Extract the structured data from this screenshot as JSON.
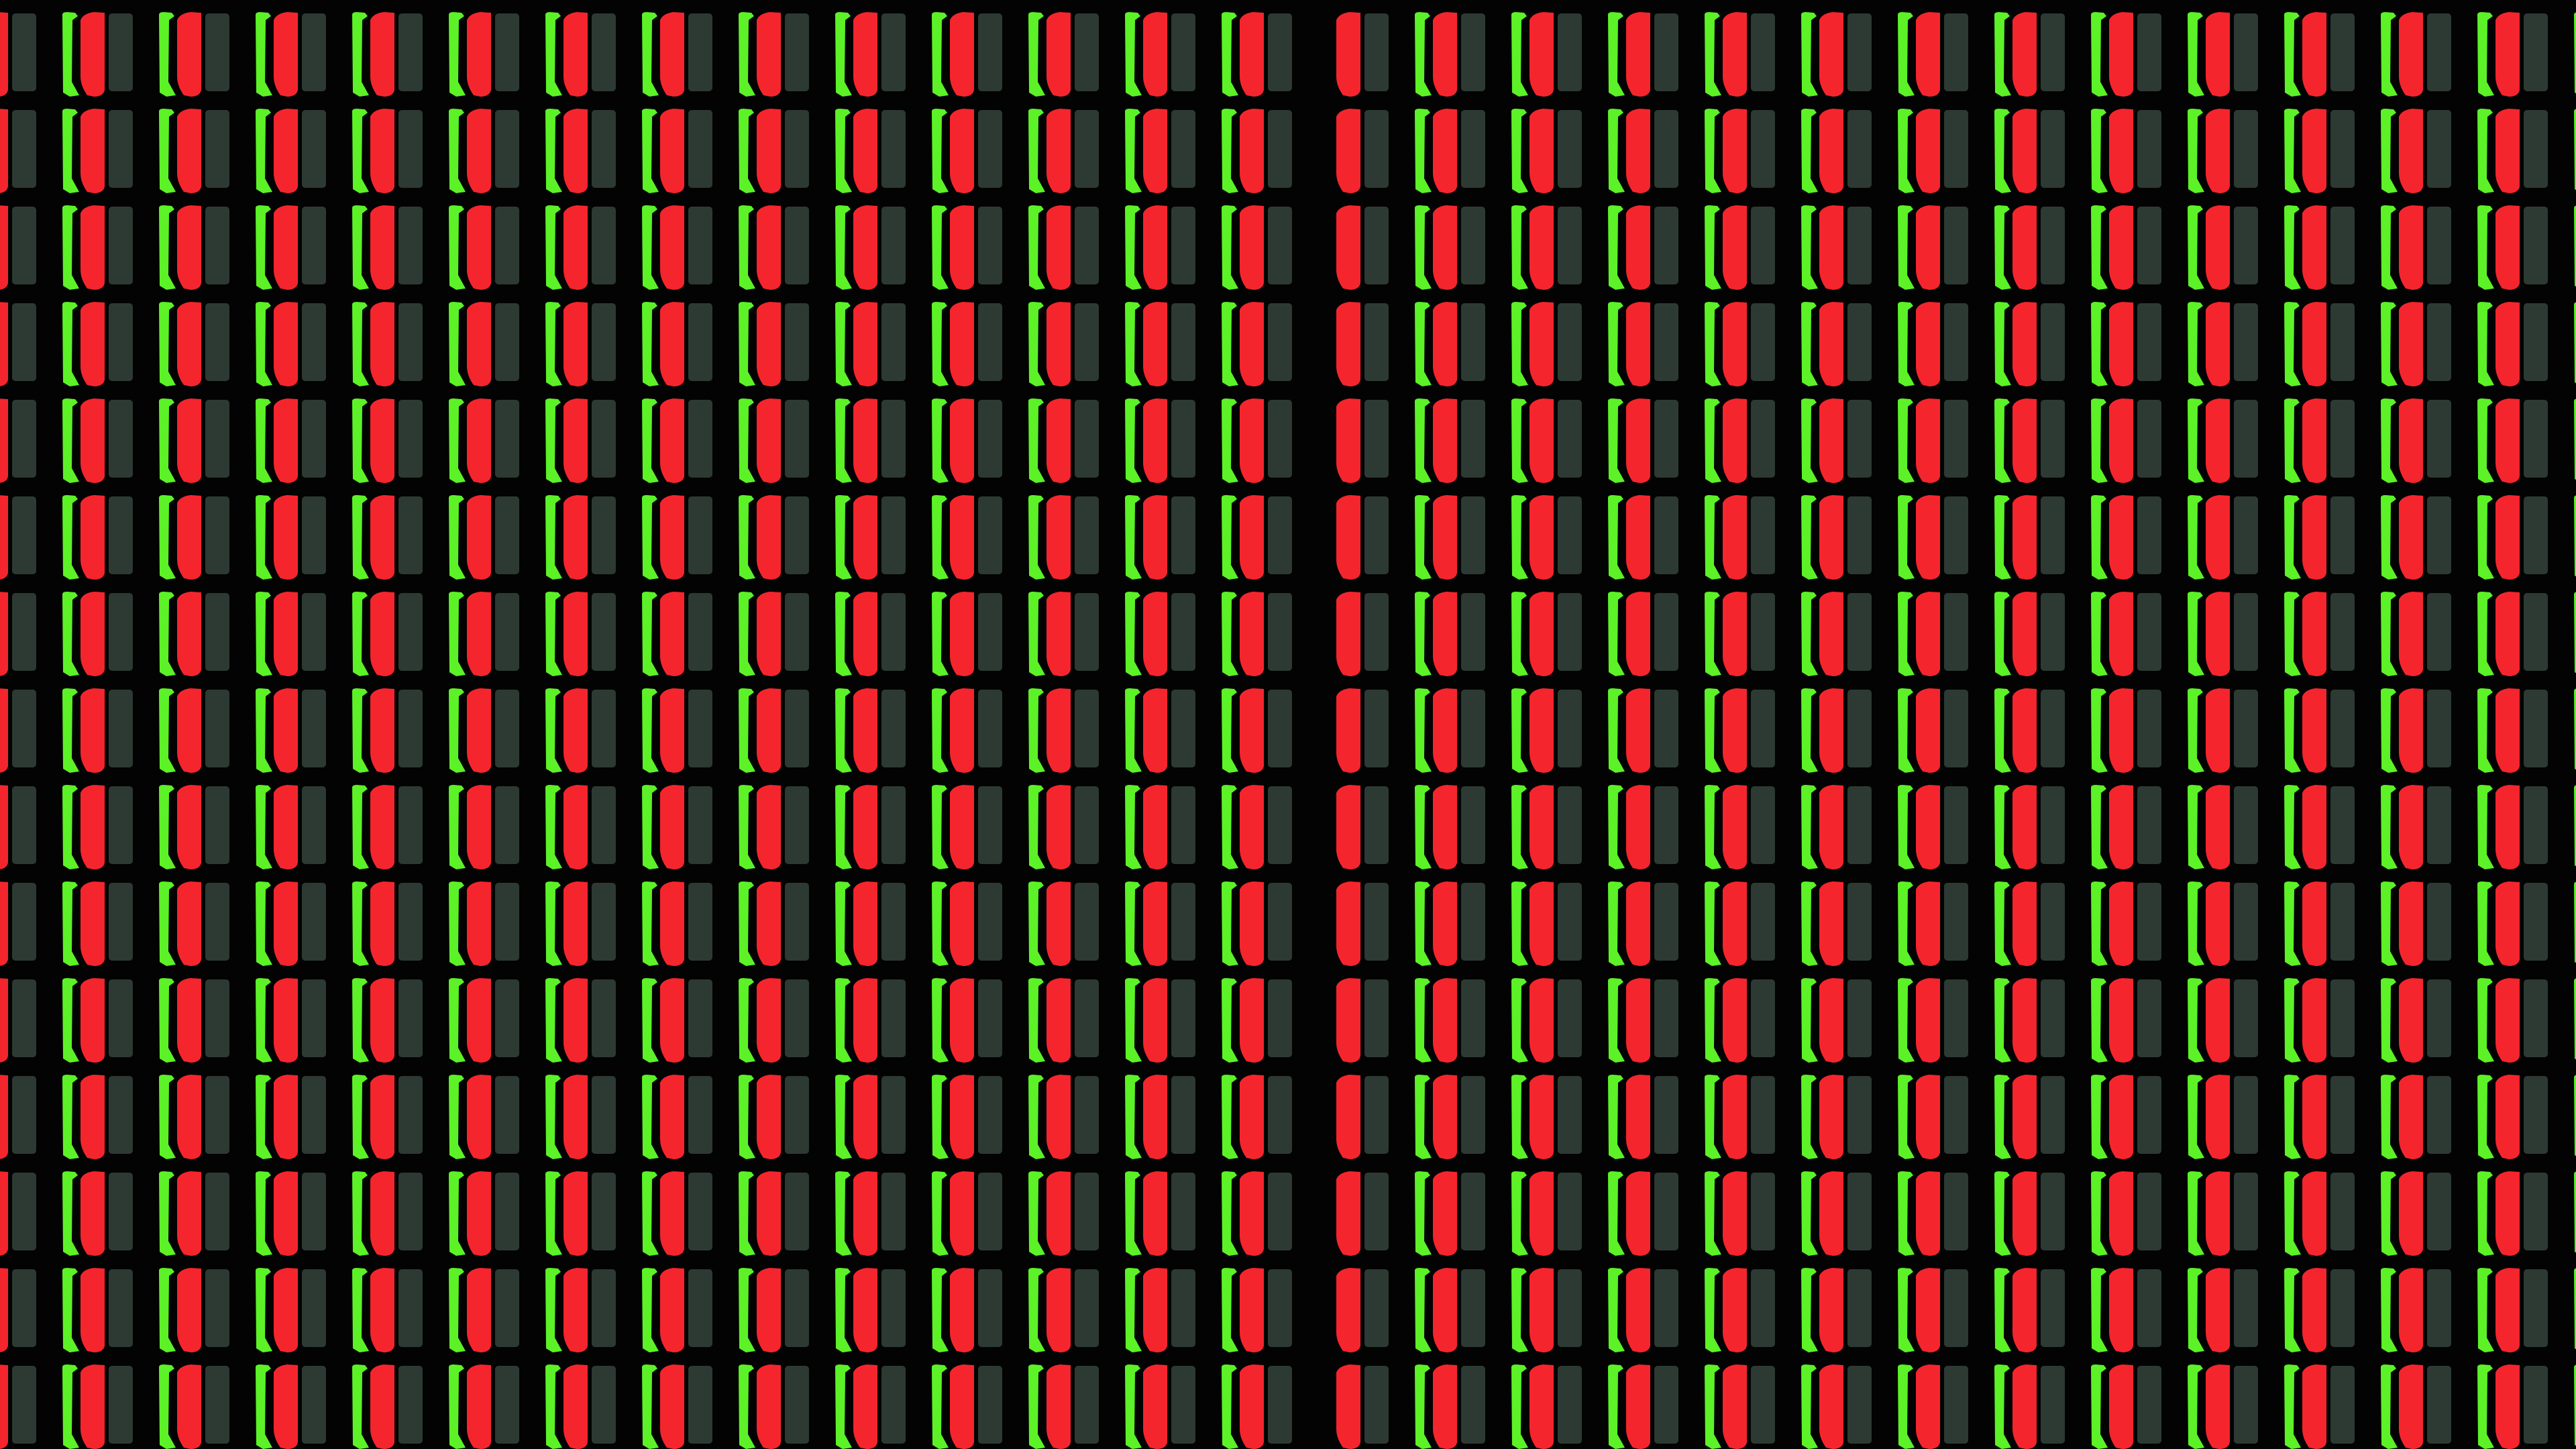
{
  "colors": {
    "background": "#030303",
    "green_subpixel": "#5cf227",
    "red_subpixel": "#f5252e",
    "blue_subpixel_off": "#2c3a33"
  }
}
